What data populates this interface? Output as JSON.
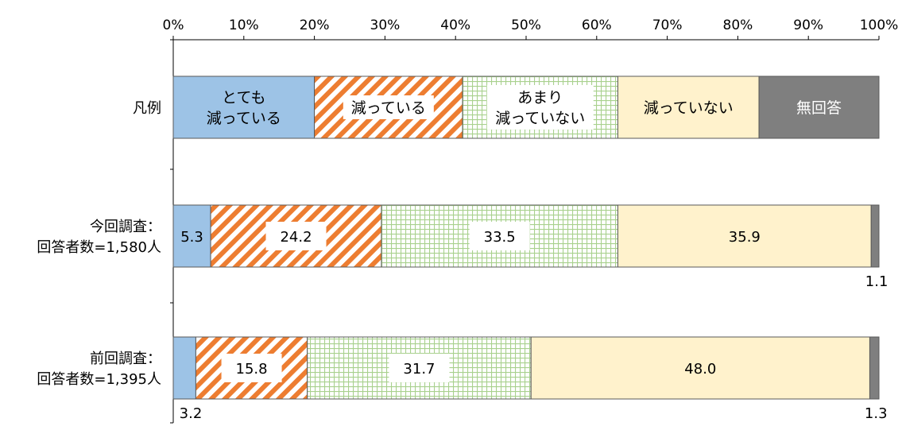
{
  "chart_data": {
    "type": "bar",
    "orientation": "horizontal",
    "stacked": true,
    "xlim": [
      0,
      100
    ],
    "x_ticks": [
      "0%",
      "10%",
      "20%",
      "30%",
      "40%",
      "50%",
      "60%",
      "70%",
      "80%",
      "90%",
      "100%"
    ],
    "x_tick_position": "top",
    "legend_row": {
      "category_label": "凡例",
      "entries": [
        {
          "lines": [
            "とても",
            "減っている"
          ],
          "value": 20,
          "color": "#9dc3e6",
          "pattern": "solid"
        },
        {
          "lines": [
            "減っている"
          ],
          "value": 21,
          "color": "#ed7d31",
          "pattern": "diagonal-stripes"
        },
        {
          "lines": [
            "あまり",
            "減っていない"
          ],
          "value": 22,
          "color": "#a9d18e",
          "pattern": "grid"
        },
        {
          "lines": [
            "減っていない"
          ],
          "value": 20,
          "color": "#fff2cc",
          "pattern": "solid"
        },
        {
          "lines": [
            "無回答"
          ],
          "value": 17,
          "color": "#7f7f7f",
          "pattern": "solid"
        }
      ]
    },
    "series": [
      {
        "name": "とても減っている",
        "values": [
          5.3,
          3.2
        ],
        "labels": [
          "5.3",
          "3.2"
        ]
      },
      {
        "name": "減っている",
        "values": [
          24.2,
          15.8
        ],
        "labels": [
          "24.2",
          "15.8"
        ]
      },
      {
        "name": "あまり減っていない",
        "values": [
          33.5,
          31.7
        ],
        "labels": [
          "33.5",
          "31.7"
        ]
      },
      {
        "name": "減っていない",
        "values": [
          35.9,
          48.0
        ],
        "labels": [
          "35.9",
          "48.0"
        ]
      },
      {
        "name": "無回答",
        "values": [
          1.1,
          1.3
        ],
        "labels": [
          "1.1",
          "1.3"
        ]
      }
    ],
    "categories": [
      {
        "lines": [
          "今回調査：",
          "回答者数=1,580人"
        ]
      },
      {
        "lines": [
          "前回調査：",
          "回答者数=1,395人"
        ]
      }
    ]
  }
}
